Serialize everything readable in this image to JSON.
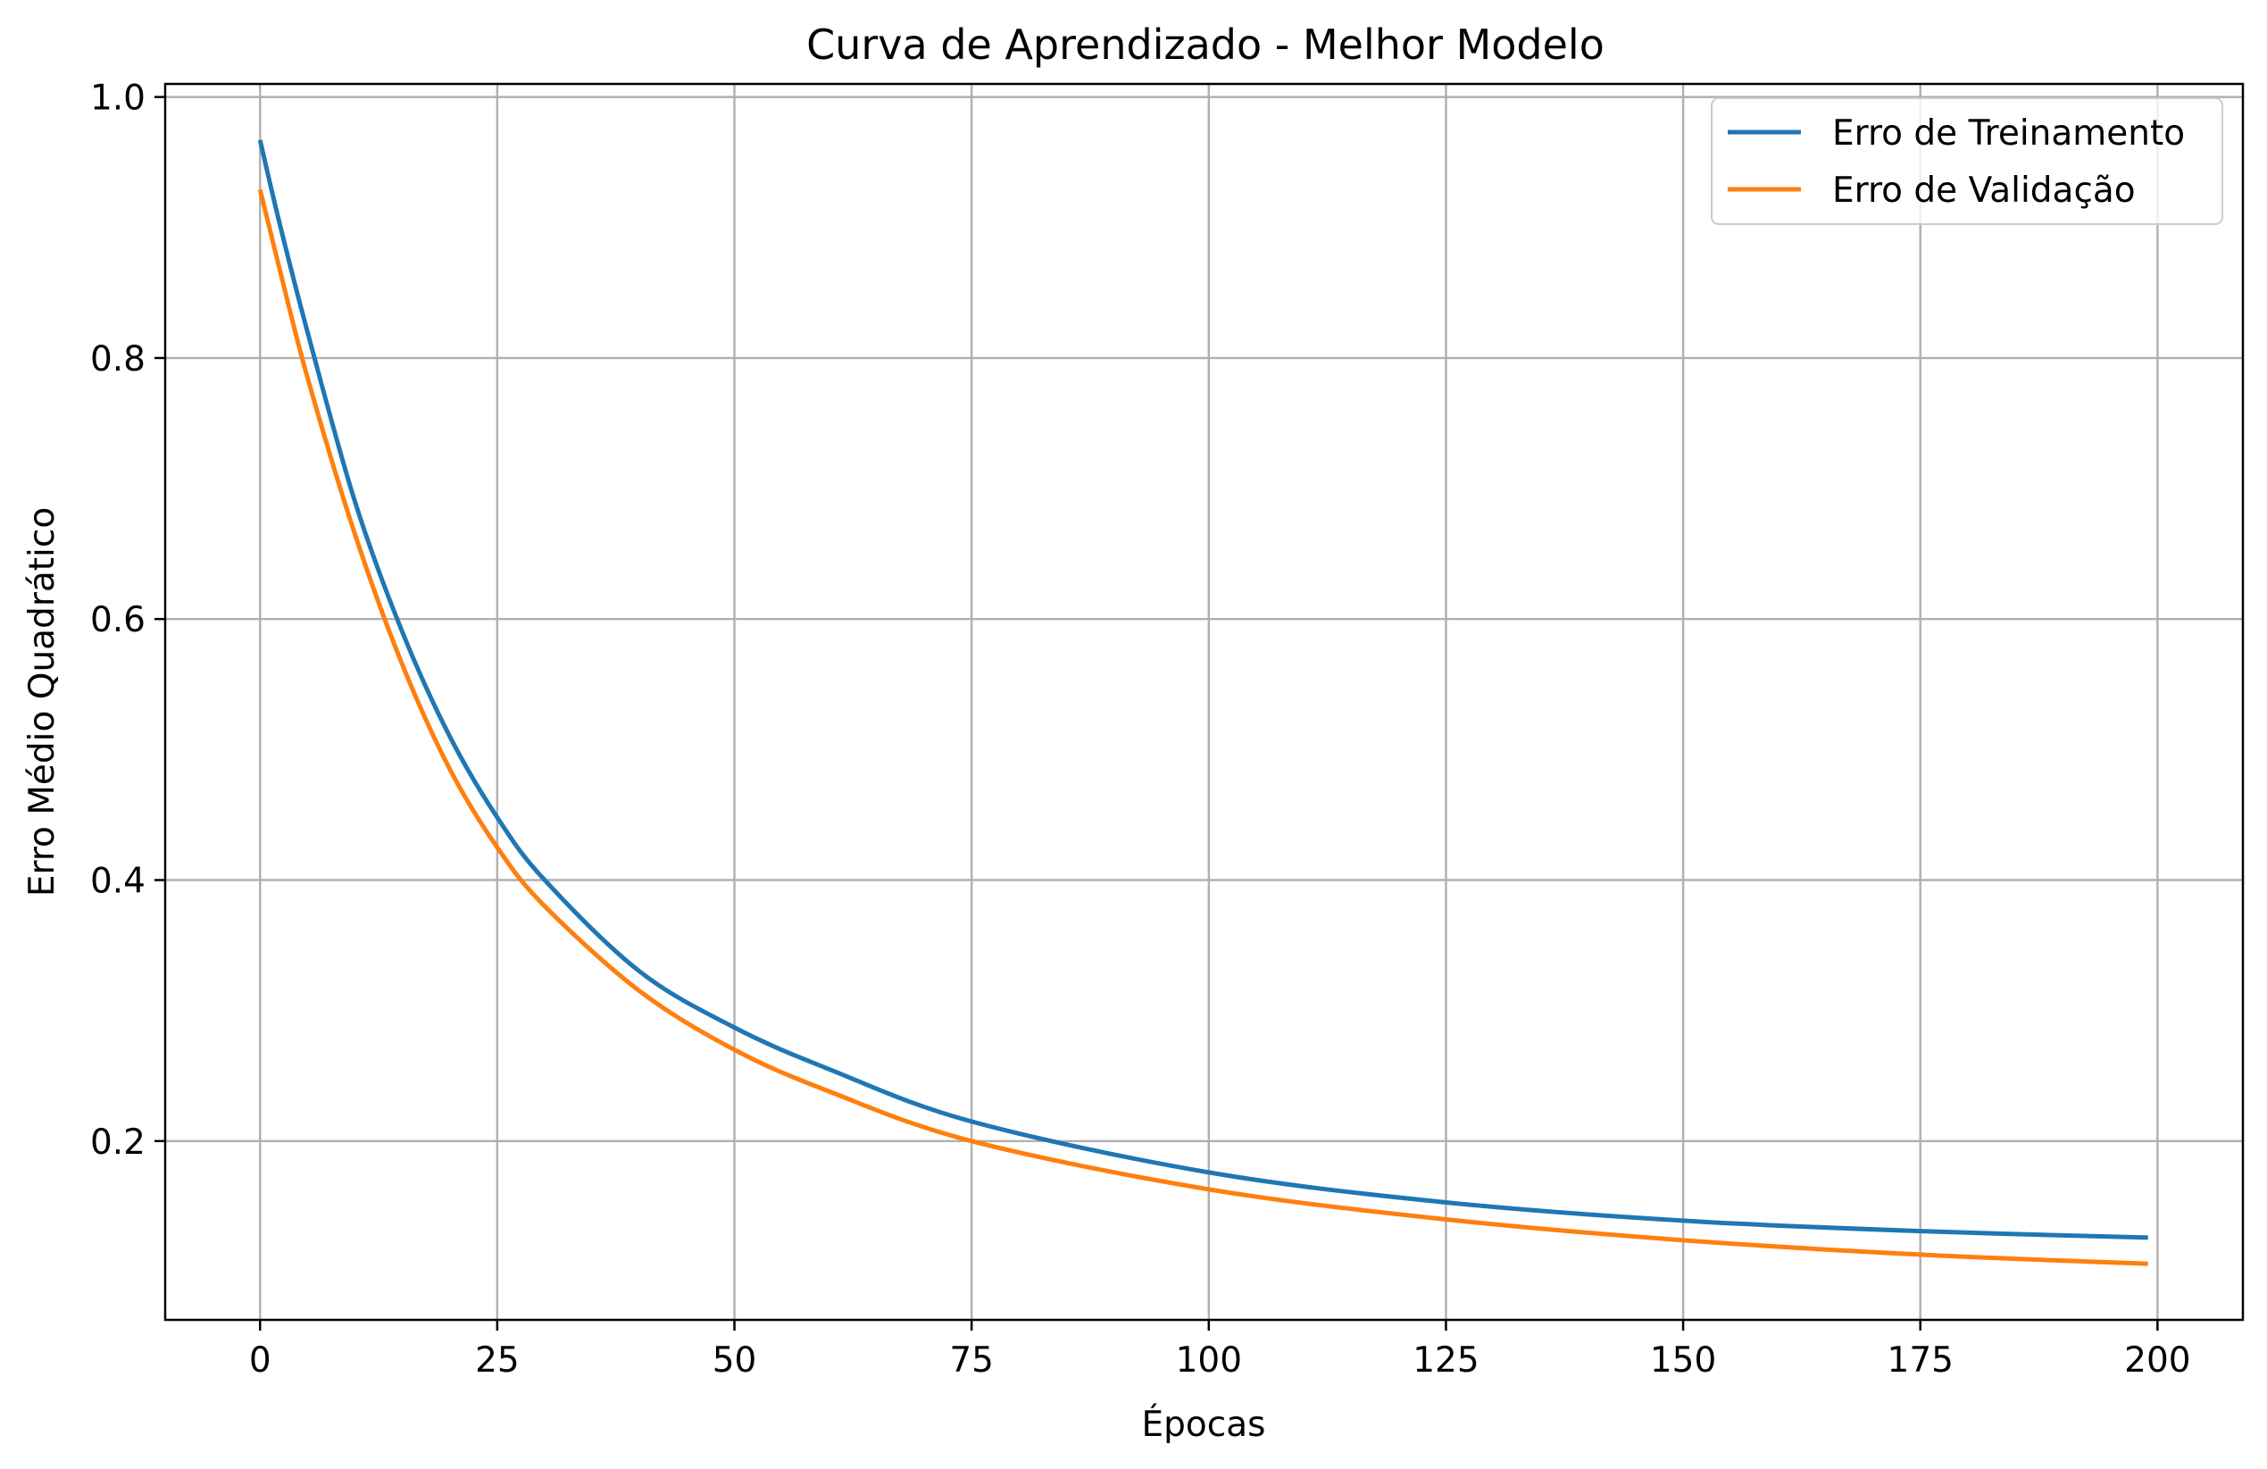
{
  "chart_data": {
    "type": "line",
    "title": "Curva de Aprendizado - Melhor Modelo",
    "xlabel": "Épocas",
    "ylabel": "Erro Médio Quadrático",
    "xlim": [
      -10,
      209
    ],
    "ylim": [
      0.063,
      1.01
    ],
    "xticks": [
      0,
      25,
      50,
      75,
      100,
      125,
      150,
      175,
      200
    ],
    "xtick_labels": [
      "0",
      "25",
      "50",
      "75",
      "100",
      "125",
      "150",
      "175",
      "200"
    ],
    "yticks": [
      0.2,
      0.4,
      0.6,
      0.8,
      1.0
    ],
    "ytick_labels": [
      "0.2",
      "0.4",
      "0.6",
      "0.8",
      "1.0"
    ],
    "grid": true,
    "legend_position": "top-right",
    "series": [
      {
        "name": "Erro de Treinamento",
        "color": "#1f77b4",
        "points": [
          [
            0,
            0.967
          ],
          [
            2,
            0.905
          ],
          [
            5,
            0.82
          ],
          [
            10,
            0.69
          ],
          [
            15,
            0.59
          ],
          [
            20,
            0.51
          ],
          [
            25,
            0.448
          ],
          [
            30,
            0.4
          ],
          [
            40,
            0.33
          ],
          [
            50,
            0.287
          ],
          [
            60,
            0.255
          ],
          [
            75,
            0.215
          ],
          [
            100,
            0.176
          ],
          [
            125,
            0.153
          ],
          [
            150,
            0.139
          ],
          [
            175,
            0.131
          ],
          [
            199,
            0.126
          ]
        ]
      },
      {
        "name": "Erro de Validação",
        "color": "#ff7f0e",
        "points": [
          [
            0,
            0.929
          ],
          [
            2,
            0.87
          ],
          [
            5,
            0.785
          ],
          [
            10,
            0.665
          ],
          [
            15,
            0.565
          ],
          [
            20,
            0.485
          ],
          [
            25,
            0.425
          ],
          [
            30,
            0.38
          ],
          [
            40,
            0.315
          ],
          [
            50,
            0.27
          ],
          [
            60,
            0.238
          ],
          [
            75,
            0.2
          ],
          [
            100,
            0.163
          ],
          [
            125,
            0.14
          ],
          [
            150,
            0.124
          ],
          [
            175,
            0.113
          ],
          [
            199,
            0.106
          ]
        ]
      }
    ]
  }
}
